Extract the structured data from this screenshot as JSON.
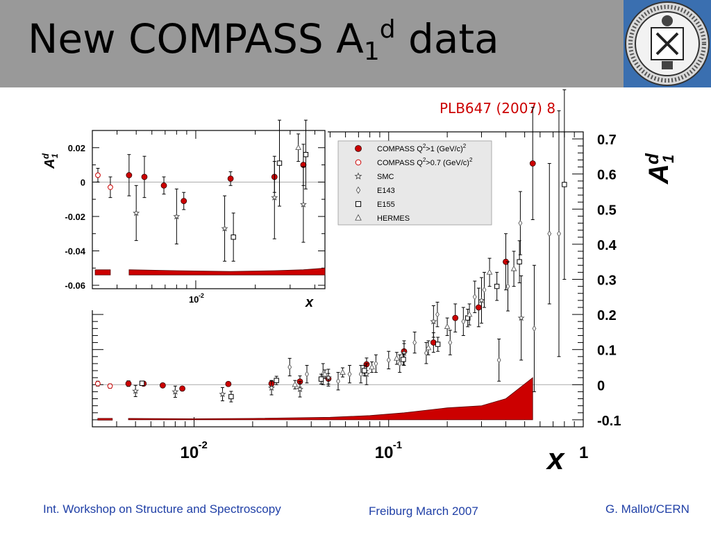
{
  "slide": {
    "title_main": "New COMPASS A",
    "title_sub": "1",
    "title_sup": "d",
    "title_tail": " data",
    "reference": "PLB647 (2007) 8",
    "footer_left": "Int. Workshop on Structure and Spectroscopy",
    "footer_center": "Freiburg March 2007",
    "footer_right": "G. Mallot/CERN"
  },
  "colors": {
    "title_bar": "#999999",
    "compass": "#cc0000",
    "band": "#cc0000",
    "reference": "#cc0000",
    "footer": "#1f3fa6"
  },
  "chart_data": [
    {
      "type": "scatter",
      "name": "main",
      "xscale": "log",
      "xlim": [
        0.003,
        1
      ],
      "ylim": [
        -0.12,
        0.72
      ],
      "xlabel": "x",
      "ylabel": "A1d",
      "ylabel_main": "A",
      "ylabel_sup": "d",
      "ylabel_sub": "1",
      "x_tick_labels": [
        {
          "x": 0.01,
          "base": "10",
          "exp": "-2"
        },
        {
          "x": 0.1,
          "base": "10",
          "exp": "-1"
        },
        {
          "x": 1,
          "base": "1",
          "exp": ""
        }
      ],
      "y_ticks": [
        -0.1,
        0,
        0.1,
        0.2,
        0.3,
        0.4,
        0.5,
        0.6,
        0.7
      ],
      "y_tick_labels": [
        "-0.1",
        "0",
        "0.1",
        "0.2",
        "0.3",
        "0.4",
        "0.5",
        "0.6",
        "0.7"
      ],
      "zero_line": true,
      "legend": [
        {
          "marker": "filled-circle",
          "text": "COMPASS Q",
          "sup": "2",
          "text2": ">1 (GeV/c)",
          "sup2": "2"
        },
        {
          "marker": "open-circle",
          "text": "COMPASS Q",
          "sup": "2",
          "text2": ">0.7 (GeV/c)",
          "sup2": "2"
        },
        {
          "marker": "star",
          "text": "SMC",
          "sup": "",
          "text2": "",
          "sup2": ""
        },
        {
          "marker": "diamond",
          "text": "E143",
          "sup": "",
          "text2": "",
          "sup2": ""
        },
        {
          "marker": "square",
          "text": "E155",
          "sup": "",
          "text2": "",
          "sup2": ""
        },
        {
          "marker": "triangle",
          "text": "HERMES",
          "sup": "",
          "text2": "",
          "sup2": ""
        }
      ],
      "series": [
        {
          "marker": "filled-circle",
          "points": [
            {
              "x": 0.0046,
              "y": 0.003,
              "err": 0.008
            },
            {
              "x": 0.0055,
              "y": 0.003,
              "err": 0.006
            },
            {
              "x": 0.0069,
              "y": -0.002,
              "err": 0.004
            },
            {
              "x": 0.0087,
              "y": -0.011,
              "err": 0.004
            },
            {
              "x": 0.015,
              "y": 0.002,
              "err": 0.004
            },
            {
              "x": 0.025,
              "y": 0.003,
              "err": 0.009
            },
            {
              "x": 0.035,
              "y": 0.009,
              "err": 0.016
            },
            {
              "x": 0.049,
              "y": 0.017,
              "err": 0.015
            },
            {
              "x": 0.077,
              "y": 0.058,
              "err": 0.018
            },
            {
              "x": 0.12,
              "y": 0.095,
              "err": 0.022
            },
            {
              "x": 0.17,
              "y": 0.12,
              "err": 0.028
            },
            {
              "x": 0.22,
              "y": 0.19,
              "err": 0.04
            },
            {
              "x": 0.29,
              "y": 0.22,
              "err": 0.055
            },
            {
              "x": 0.4,
              "y": 0.35,
              "err": 0.08
            },
            {
              "x": 0.55,
              "y": 0.63,
              "err": 0.16
            }
          ]
        },
        {
          "marker": "open-circle",
          "points": [
            {
              "x": 0.0032,
              "y": 0.003,
              "err": 0.007
            },
            {
              "x": 0.0037,
              "y": -0.004,
              "err": 0.006
            }
          ]
        },
        {
          "marker": "star",
          "points": [
            {
              "x": 0.005,
              "y": -0.018,
              "err": 0.016
            },
            {
              "x": 0.008,
              "y": -0.02,
              "err": 0.016
            },
            {
              "x": 0.014,
              "y": -0.027,
              "err": 0.019
            },
            {
              "x": 0.025,
              "y": -0.009,
              "err": 0.02
            },
            {
              "x": 0.035,
              "y": -0.013,
              "err": 0.022
            },
            {
              "x": 0.049,
              "y": 0.02,
              "err": 0.024
            },
            {
              "x": 0.077,
              "y": 0.03,
              "err": 0.03
            },
            {
              "x": 0.12,
              "y": 0.09,
              "err": 0.035
            },
            {
              "x": 0.17,
              "y": 0.18,
              "err": 0.045
            },
            {
              "x": 0.3,
              "y": 0.24,
              "err": 0.065
            },
            {
              "x": 0.48,
              "y": 0.19,
              "err": 0.12
            }
          ]
        },
        {
          "marker": "diamond",
          "points": [
            {
              "x": 0.031,
              "y": 0.05,
              "err": 0.025
            },
            {
              "x": 0.038,
              "y": 0.03,
              "err": 0.025
            },
            {
              "x": 0.046,
              "y": 0.03,
              "err": 0.03
            },
            {
              "x": 0.055,
              "y": 0.01,
              "err": 0.025
            },
            {
              "x": 0.063,
              "y": 0.03,
              "err": 0.025
            },
            {
              "x": 0.072,
              "y": 0.03,
              "err": 0.025
            },
            {
              "x": 0.086,
              "y": 0.06,
              "err": 0.025
            },
            {
              "x": 0.1,
              "y": 0.07,
              "err": 0.025
            },
            {
              "x": 0.114,
              "y": 0.06,
              "err": 0.025
            },
            {
              "x": 0.136,
              "y": 0.12,
              "err": 0.03
            },
            {
              "x": 0.156,
              "y": 0.09,
              "err": 0.03
            },
            {
              "x": 0.178,
              "y": 0.2,
              "err": 0.035
            },
            {
              "x": 0.207,
              "y": 0.12,
              "err": 0.035
            },
            {
              "x": 0.242,
              "y": 0.18,
              "err": 0.04
            },
            {
              "x": 0.277,
              "y": 0.25,
              "err": 0.045
            },
            {
              "x": 0.31,
              "y": 0.27,
              "err": 0.05
            },
            {
              "x": 0.369,
              "y": 0.07,
              "err": 0.06
            },
            {
              "x": 0.41,
              "y": 0.28,
              "err": 0.07
            },
            {
              "x": 0.475,
              "y": 0.46,
              "err": 0.09
            },
            {
              "x": 0.56,
              "y": 0.16,
              "err": 0.18
            },
            {
              "x": 0.67,
              "y": 0.43,
              "err": 0.2
            },
            {
              "x": 0.75,
              "y": 0.43,
              "err": 0.35
            }
          ]
        },
        {
          "marker": "square",
          "points": [
            {
              "x": 0.0054,
              "y": 0.004,
              "err": 0.006
            },
            {
              "x": 0.0155,
              "y": -0.034,
              "err": 0.015
            },
            {
              "x": 0.0265,
              "y": 0.012,
              "err": 0.012
            },
            {
              "x": 0.045,
              "y": 0.016,
              "err": 0.014
            },
            {
              "x": 0.075,
              "y": 0.04,
              "err": 0.015
            },
            {
              "x": 0.119,
              "y": 0.072,
              "err": 0.016
            },
            {
              "x": 0.179,
              "y": 0.115,
              "err": 0.02
            },
            {
              "x": 0.255,
              "y": 0.19,
              "err": 0.025
            },
            {
              "x": 0.36,
              "y": 0.28,
              "err": 0.04
            },
            {
              "x": 0.47,
              "y": 0.35,
              "err": 0.06
            },
            {
              "x": 0.8,
              "y": 0.57,
              "err": 0.27
            }
          ]
        },
        {
          "marker": "triangle",
          "points": [
            {
              "x": 0.033,
              "y": 0.0,
              "err": 0.012
            },
            {
              "x": 0.047,
              "y": 0.03,
              "err": 0.012
            },
            {
              "x": 0.058,
              "y": 0.035,
              "err": 0.013
            },
            {
              "x": 0.082,
              "y": 0.05,
              "err": 0.015
            },
            {
              "x": 0.11,
              "y": 0.075,
              "err": 0.017
            },
            {
              "x": 0.16,
              "y": 0.105,
              "err": 0.02
            },
            {
              "x": 0.2,
              "y": 0.165,
              "err": 0.025
            },
            {
              "x": 0.26,
              "y": 0.2,
              "err": 0.03
            },
            {
              "x": 0.33,
              "y": 0.32,
              "err": 0.04
            },
            {
              "x": 0.44,
              "y": 0.33,
              "err": 0.05
            }
          ]
        }
      ],
      "syst_band": {
        "x": [
          0.0046,
          0.01,
          0.02,
          0.05,
          0.08,
          0.12,
          0.2,
          0.3,
          0.4,
          0.55
        ],
        "lower": [
          -0.1,
          -0.1,
          -0.1,
          -0.1,
          -0.1,
          -0.1,
          -0.1,
          -0.1,
          -0.1,
          -0.1
        ],
        "upper": [
          -0.096,
          -0.097,
          -0.096,
          -0.093,
          -0.088,
          -0.08,
          -0.066,
          -0.06,
          -0.04,
          0.02
        ]
      },
      "syst_stub": {
        "x": [
          0.0032,
          0.0038
        ],
        "lower": -0.101,
        "upper": -0.096
      }
    },
    {
      "type": "scatter",
      "name": "inset",
      "xscale": "log",
      "xlim": [
        0.003,
        0.045
      ],
      "ylim": [
        -0.062,
        0.03
      ],
      "xlabel": "x",
      "ylabel": "A1d",
      "ylabel_main": "A",
      "ylabel_sup": "d",
      "ylabel_sub": "1",
      "x_tick_labels": [
        {
          "x": 0.01,
          "base": "10",
          "exp": "-2"
        }
      ],
      "y_ticks": [
        -0.06,
        -0.04,
        -0.02,
        0,
        0.02
      ],
      "y_tick_labels": [
        "-0.06",
        "-0.04",
        "-0.02",
        "0",
        "0.02"
      ],
      "zero_line": true,
      "series": [
        {
          "marker": "filled-circle",
          "points": [
            {
              "x": 0.0046,
              "y": 0.004,
              "err": 0.012
            },
            {
              "x": 0.0055,
              "y": 0.003,
              "err": 0.012
            },
            {
              "x": 0.0069,
              "y": -0.002,
              "err": 0.005
            },
            {
              "x": 0.0087,
              "y": -0.011,
              "err": 0.005
            },
            {
              "x": 0.015,
              "y": 0.002,
              "err": 0.004
            },
            {
              "x": 0.025,
              "y": 0.003,
              "err": 0.009
            },
            {
              "x": 0.035,
              "y": 0.01,
              "err": 0.012
            }
          ]
        },
        {
          "marker": "open-circle",
          "points": [
            {
              "x": 0.0032,
              "y": 0.004,
              "err": 0.004
            },
            {
              "x": 0.0037,
              "y": -0.003,
              "err": 0.006
            }
          ]
        },
        {
          "marker": "star",
          "points": [
            {
              "x": 0.005,
              "y": -0.018,
              "err": 0.016
            },
            {
              "x": 0.008,
              "y": -0.02,
              "err": 0.016
            },
            {
              "x": 0.014,
              "y": -0.027,
              "err": 0.019
            },
            {
              "x": 0.025,
              "y": -0.009,
              "err": 0.024
            },
            {
              "x": 0.035,
              "y": -0.013,
              "err": 0.022
            }
          ]
        },
        {
          "marker": "square",
          "points": [
            {
              "x": 0.0155,
              "y": -0.032,
              "err": 0.014
            },
            {
              "x": 0.0265,
              "y": 0.011,
              "err": 0.025
            },
            {
              "x": 0.036,
              "y": 0.016,
              "err": 0.02
            }
          ]
        },
        {
          "marker": "triangle",
          "points": [
            {
              "x": 0.033,
              "y": 0.02,
              "err": 0.008
            }
          ]
        }
      ],
      "syst_band": {
        "x": [
          0.0046,
          0.008,
          0.015,
          0.025,
          0.035,
          0.045
        ],
        "lower": [
          -0.054,
          -0.054,
          -0.054,
          -0.054,
          -0.054,
          -0.054
        ],
        "upper": [
          -0.051,
          -0.0515,
          -0.052,
          -0.0515,
          -0.051,
          -0.05
        ]
      },
      "syst_stub": {
        "x": [
          0.0031,
          0.0037
        ],
        "lower": -0.054,
        "upper": -0.051
      }
    }
  ]
}
